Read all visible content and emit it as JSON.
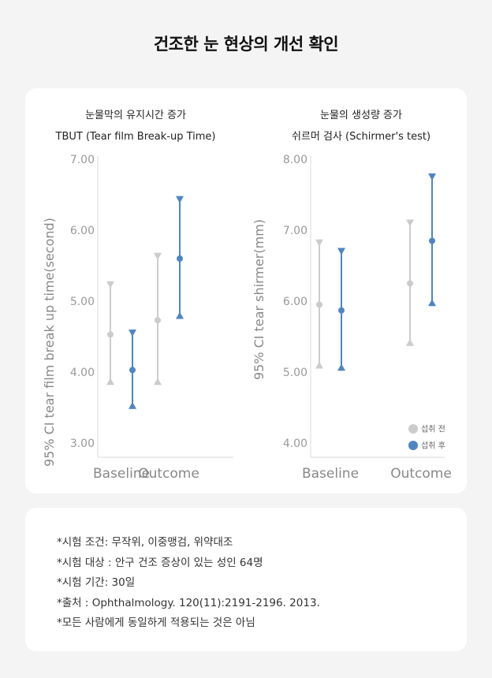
{
  "page": {
    "title": "건조한 눈 현상의 개선 확인"
  },
  "legend": {
    "before": "섭취 전",
    "after": "섭취 후"
  },
  "colors": {
    "before": "#cccccc",
    "after": "#4f86c0",
    "axis": "#d9d9d9"
  },
  "chart_data": [
    {
      "type": "error-bar",
      "title": "눈물막의 유지시간 증가",
      "subtitle": "TBUT (Tear film Break-up Time)",
      "ylabel": "95% CI tear film break up time(second)",
      "ylim": [
        3.0,
        7.0
      ],
      "yticks": [
        "7.00",
        "6.00",
        "5.00",
        "4.00",
        "3.00"
      ],
      "categories": [
        "Baseline",
        "Outcome"
      ],
      "series": [
        {
          "name": "섭취 전",
          "color": "#cccccc",
          "points": [
            {
              "mean": 4.53,
              "low": 3.82,
              "high": 5.28
            },
            {
              "mean": 4.73,
              "low": 3.82,
              "high": 5.68
            }
          ]
        },
        {
          "name": "섭취 후",
          "color": "#4f86c0",
          "points": [
            {
              "mean": 4.03,
              "low": 3.48,
              "high": 4.6
            },
            {
              "mean": 5.6,
              "low": 4.75,
              "high": 6.48
            }
          ]
        }
      ]
    },
    {
      "type": "error-bar",
      "title": "눈물의 생성량 증가",
      "subtitle": "쉬르머 검사 (Schirmer's test)",
      "ylabel": "95% CI tear shirmer(mm)",
      "ylim": [
        4.0,
        8.0
      ],
      "yticks": [
        "8.00",
        "7.00",
        "6.00",
        "5.00",
        "4.00"
      ],
      "categories": [
        "Baseline",
        "Outcome"
      ],
      "series": [
        {
          "name": "섭취 전",
          "color": "#cccccc",
          "points": [
            {
              "mean": 5.95,
              "low": 5.05,
              "high": 6.87
            },
            {
              "mean": 6.25,
              "low": 5.37,
              "high": 7.15
            }
          ]
        },
        {
          "name": "섭취 후",
          "color": "#4f86c0",
          "points": [
            {
              "mean": 5.87,
              "low": 5.02,
              "high": 6.75
            },
            {
              "mean": 6.85,
              "low": 5.93,
              "high": 7.8
            }
          ]
        }
      ]
    }
  ],
  "notes": [
    "*시험 조건: 무작위, 이중맹검, 위약대조",
    "*시험 대상 : 안구 건조 증상이 있는 성인 64명",
    "*시험 기간: 30일",
    "*출처 : Ophthalmology. 120(11):2191-2196. 2013.",
    "*모든 사람에게 동일하게 적용되는 것은 아님"
  ]
}
